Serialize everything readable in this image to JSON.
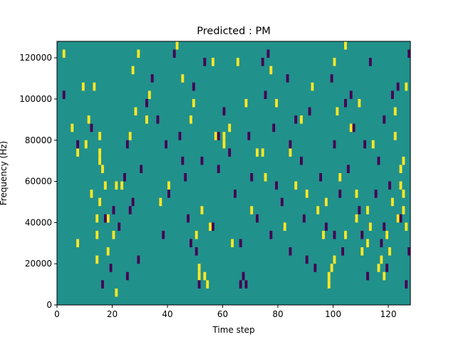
{
  "chart_data": {
    "type": "heatmap",
    "title": "Predicted : PM",
    "xlabel": "Time step",
    "ylabel": "Frequency (Hz)",
    "xlim": [
      0,
      128
    ],
    "ylim": [
      0,
      128000
    ],
    "x_ticks": [
      0,
      20,
      40,
      60,
      80,
      100,
      120
    ],
    "y_ticks": [
      0,
      20000,
      40000,
      60000,
      80000,
      100000,
      120000
    ],
    "x_tick_labels": [
      "0",
      "20",
      "40",
      "60",
      "80",
      "100",
      "120"
    ],
    "y_tick_labels": [
      "0",
      "20000",
      "40000",
      "60000",
      "80000",
      "100000",
      "120000"
    ],
    "n_time_steps": 128,
    "n_freq_bins": 32,
    "freq_bin_width_hz": 4000,
    "value_levels": [
      -1,
      0,
      1
    ],
    "background_value": 0,
    "colormap": {
      "-1": "#440154",
      "0": "#21918c",
      "1": "#fde725"
    },
    "grid": false,
    "colorbar": false,
    "cells_high": [
      [
        2,
        30
      ],
      [
        9,
        26
      ],
      [
        7,
        18
      ],
      [
        7,
        7
      ],
      [
        5,
        21
      ],
      [
        12,
        13
      ],
      [
        17,
        14
      ],
      [
        21,
        14
      ],
      [
        15,
        20
      ],
      [
        15,
        18
      ],
      [
        16,
        16
      ],
      [
        14,
        5
      ],
      [
        14,
        8
      ],
      [
        14,
        10
      ],
      [
        15,
        12
      ],
      [
        15,
        17
      ],
      [
        18,
        10
      ],
      [
        18,
        6
      ],
      [
        20,
        8
      ],
      [
        21,
        1
      ],
      [
        23,
        14
      ],
      [
        26,
        20
      ],
      [
        29,
        30
      ],
      [
        32,
        22
      ],
      [
        37,
        12
      ],
      [
        40,
        14
      ],
      [
        43,
        31
      ],
      [
        48,
        22
      ],
      [
        49,
        24
      ],
      [
        50,
        8
      ],
      [
        51,
        3
      ],
      [
        51,
        4
      ],
      [
        53,
        3
      ],
      [
        54,
        2
      ],
      [
        52,
        11
      ],
      [
        55,
        9
      ],
      [
        57,
        20
      ],
      [
        56,
        29
      ],
      [
        60,
        19
      ],
      [
        62,
        21
      ],
      [
        63,
        7
      ],
      [
        65,
        29
      ],
      [
        70,
        11
      ],
      [
        72,
        18
      ],
      [
        75,
        15
      ],
      [
        77,
        28
      ],
      [
        79,
        24
      ],
      [
        82,
        9
      ],
      [
        84,
        18
      ],
      [
        86,
        14
      ],
      [
        88,
        22
      ],
      [
        90,
        13
      ],
      [
        92,
        26
      ],
      [
        94,
        11
      ],
      [
        96,
        8
      ],
      [
        97,
        12
      ],
      [
        98,
        2
      ],
      [
        98,
        3
      ],
      [
        99,
        4
      ],
      [
        100,
        5
      ],
      [
        101,
        23
      ],
      [
        102,
        15
      ],
      [
        104,
        8
      ],
      [
        106,
        21
      ],
      [
        108,
        10
      ],
      [
        108,
        13
      ],
      [
        110,
        6
      ],
      [
        112,
        11
      ],
      [
        112,
        7
      ],
      [
        113,
        9
      ],
      [
        114,
        19
      ],
      [
        116,
        4
      ],
      [
        117,
        5
      ],
      [
        118,
        3
      ],
      [
        119,
        8
      ],
      [
        120,
        6
      ],
      [
        121,
        12
      ],
      [
        122,
        20
      ],
      [
        123,
        10
      ],
      [
        124,
        14
      ],
      [
        124,
        16
      ],
      [
        125,
        11
      ],
      [
        125,
        13
      ],
      [
        126,
        26
      ],
      [
        126,
        9
      ],
      [
        125,
        17
      ],
      [
        122,
        23
      ],
      [
        109,
        24
      ],
      [
        104,
        31
      ],
      [
        100,
        29
      ],
      [
        74,
        18
      ],
      [
        68,
        24
      ],
      [
        60,
        20
      ],
      [
        45,
        27
      ],
      [
        33,
        25
      ],
      [
        28,
        23
      ],
      [
        27,
        28
      ],
      [
        13,
        26
      ],
      [
        10,
        19
      ],
      [
        11,
        22
      ]
    ],
    "cells_low": [
      [
        2,
        25
      ],
      [
        7,
        19
      ],
      [
        12,
        21
      ],
      [
        17,
        10
      ],
      [
        19,
        4
      ],
      [
        22,
        9
      ],
      [
        24,
        15
      ],
      [
        25,
        19
      ],
      [
        26,
        11
      ],
      [
        27,
        12
      ],
      [
        29,
        5
      ],
      [
        32,
        24
      ],
      [
        34,
        27
      ],
      [
        36,
        22
      ],
      [
        39,
        19
      ],
      [
        40,
        13
      ],
      [
        42,
        30
      ],
      [
        44,
        20
      ],
      [
        45,
        17
      ],
      [
        47,
        10
      ],
      [
        48,
        7
      ],
      [
        49,
        26
      ],
      [
        50,
        6
      ],
      [
        51,
        2
      ],
      [
        53,
        29
      ],
      [
        56,
        9
      ],
      [
        58,
        16
      ],
      [
        60,
        23
      ],
      [
        62,
        18
      ],
      [
        64,
        13
      ],
      [
        66,
        7
      ],
      [
        67,
        3
      ],
      [
        68,
        2
      ],
      [
        69,
        20
      ],
      [
        70,
        15
      ],
      [
        72,
        10
      ],
      [
        74,
        29
      ],
      [
        75,
        25
      ],
      [
        77,
        8
      ],
      [
        78,
        21
      ],
      [
        79,
        14
      ],
      [
        81,
        12
      ],
      [
        83,
        27
      ],
      [
        84,
        6
      ],
      [
        86,
        22
      ],
      [
        88,
        17
      ],
      [
        89,
        10
      ],
      [
        91,
        23
      ],
      [
        93,
        4
      ],
      [
        95,
        15
      ],
      [
        97,
        9
      ],
      [
        99,
        27
      ],
      [
        100,
        19
      ],
      [
        102,
        13
      ],
      [
        103,
        6
      ],
      [
        104,
        24
      ],
      [
        105,
        16
      ],
      [
        106,
        25
      ],
      [
        107,
        21
      ],
      [
        109,
        11
      ],
      [
        110,
        8
      ],
      [
        111,
        19
      ],
      [
        113,
        29
      ],
      [
        115,
        13
      ],
      [
        116,
        17
      ],
      [
        117,
        7
      ],
      [
        118,
        22
      ],
      [
        119,
        4
      ],
      [
        120,
        14
      ],
      [
        121,
        25
      ],
      [
        123,
        26
      ],
      [
        124,
        10
      ],
      [
        126,
        2
      ],
      [
        127,
        30
      ],
      [
        127,
        6
      ],
      [
        118,
        9
      ],
      [
        112,
        3
      ],
      [
        100,
        8
      ],
      [
        90,
        5
      ],
      [
        84,
        19
      ],
      [
        76,
        30
      ],
      [
        66,
        2
      ],
      [
        58,
        20
      ],
      [
        52,
        17
      ],
      [
        46,
        15
      ],
      [
        38,
        8
      ],
      [
        30,
        16
      ],
      [
        25,
        3
      ],
      [
        20,
        11
      ],
      [
        16,
        2
      ]
    ]
  }
}
